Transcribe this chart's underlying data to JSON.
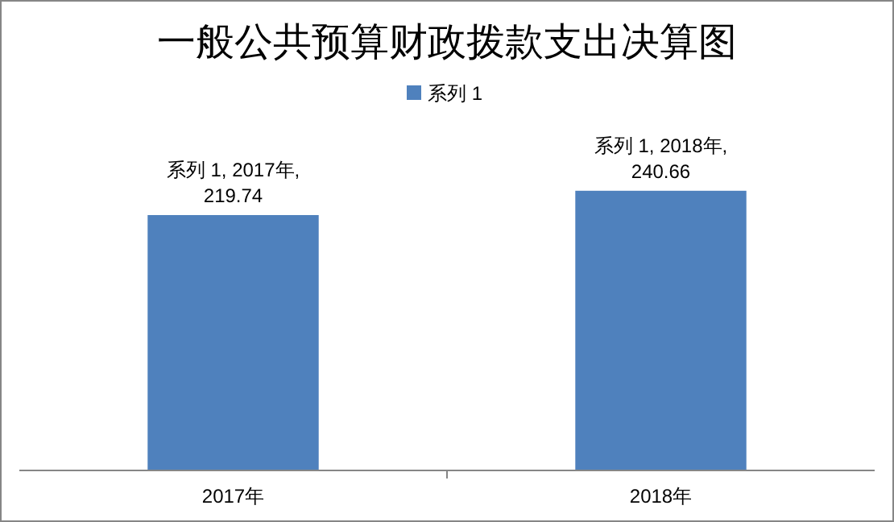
{
  "chart_data": {
    "type": "bar",
    "title": "一般公共预算财政拨款支出决算图",
    "categories": [
      "2017年",
      "2018年"
    ],
    "series": [
      {
        "name": "系列 1",
        "color": "#4f81bd",
        "values": [
          219.74,
          240.66
        ],
        "value_labels": [
          "系列 1, 2017年, 219.74",
          "系列 1, 2018年, 240.66"
        ]
      }
    ],
    "tick_labels": "x",
    "legend": "top"
  }
}
